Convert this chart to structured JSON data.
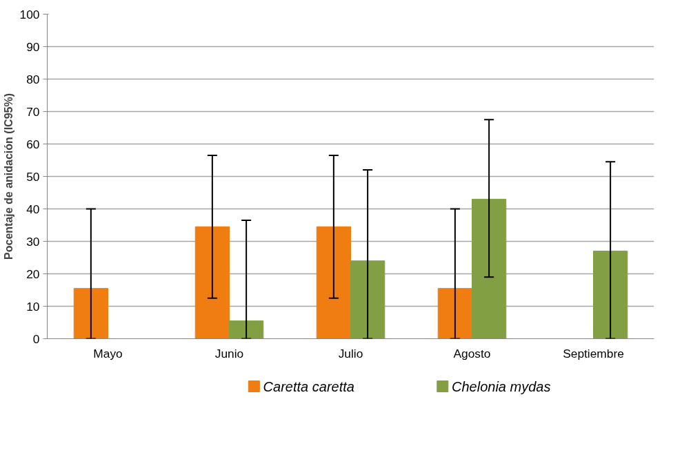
{
  "chart_data": {
    "type": "bar",
    "ylabel": "Pocentaje de anidación (IC95%)",
    "categories": [
      "Mayo",
      "Junio",
      "Julio",
      "Agosto",
      "Septiembre"
    ],
    "series": [
      {
        "name": "Caretta caretta",
        "color": "#f07d12",
        "values": [
          15.5,
          34.5,
          34.5,
          15.5,
          null
        ],
        "errors": [
          [
            0,
            40
          ],
          [
            12.5,
            56.5
          ],
          [
            12.5,
            56.5
          ],
          [
            0,
            40
          ],
          null
        ]
      },
      {
        "name": "Chelonia mydas",
        "color": "#82a043",
        "values": [
          null,
          5.5,
          24,
          43,
          27
        ],
        "errors": [
          null,
          [
            0,
            36.5
          ],
          [
            0,
            52
          ],
          [
            19,
            67.5
          ],
          [
            0,
            54.5
          ]
        ]
      }
    ],
    "ylim": [
      0,
      100
    ],
    "yticks": [
      0,
      10,
      20,
      30,
      40,
      50,
      60,
      70,
      80,
      90,
      100
    ],
    "grid": "y",
    "legend": "bottom"
  }
}
